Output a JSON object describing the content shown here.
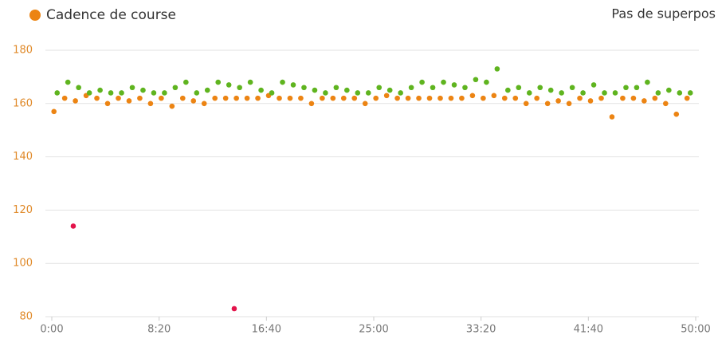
{
  "chart_data": {
    "type": "scatter",
    "legend_label": "Pas de superpos",
    "xlim": [
      0,
      3000
    ],
    "xticks": [
      {
        "value": 0,
        "label": "0:00"
      },
      {
        "value": 500,
        "label": "8:20"
      },
      {
        "value": 1000,
        "label": "16:40"
      },
      {
        "value": 1500,
        "label": "25:00"
      },
      {
        "value": 2000,
        "label": "33:20"
      },
      {
        "value": 2500,
        "label": "41:40"
      },
      {
        "value": 3000,
        "label": "50:00"
      }
    ],
    "ylim": [
      80,
      180
    ],
    "yticks": [
      80,
      100,
      120,
      140,
      160,
      180
    ],
    "ytick_color": "#e08a2a",
    "grid": true,
    "series": [
      {
        "name": "Cadence de course",
        "color": "#ec8413",
        "x": [
          10,
          60,
          110,
          160,
          210,
          260,
          310,
          360,
          410,
          460,
          510,
          560,
          610,
          660,
          710,
          760,
          810,
          860,
          910,
          960,
          1010,
          1060,
          1110,
          1160,
          1210,
          1260,
          1310,
          1360,
          1410,
          1460,
          1510,
          1560,
          1610,
          1660,
          1710,
          1760,
          1810,
          1860,
          1910,
          1960,
          2010,
          2060,
          2110,
          2160,
          2210,
          2260,
          2310,
          2360,
          2410,
          2460,
          2510,
          2560,
          2610,
          2660,
          2710,
          2760,
          2810,
          2860,
          2910,
          2960
        ],
        "values": [
          157,
          162,
          161,
          163,
          162,
          160,
          162,
          161,
          162,
          160,
          162,
          159,
          162,
          161,
          160,
          162,
          162,
          162,
          162,
          162,
          163,
          162,
          162,
          162,
          160,
          162,
          162,
          162,
          162,
          160,
          162,
          163,
          162,
          162,
          162,
          162,
          162,
          162,
          162,
          163,
          162,
          163,
          162,
          162,
          160,
          162,
          160,
          161,
          160,
          162,
          161,
          162,
          155,
          162,
          162,
          161,
          162,
          160,
          156,
          162
        ]
      },
      {
        "color": "#5fb41f",
        "x": [
          25,
          75,
          125,
          175,
          225,
          275,
          325,
          375,
          425,
          475,
          525,
          575,
          625,
          675,
          725,
          775,
          825,
          875,
          925,
          975,
          1025,
          1075,
          1125,
          1175,
          1225,
          1275,
          1325,
          1375,
          1425,
          1475,
          1525,
          1575,
          1625,
          1675,
          1725,
          1775,
          1825,
          1875,
          1925,
          1975,
          2025,
          2075,
          2125,
          2175,
          2225,
          2275,
          2325,
          2375,
          2425,
          2475,
          2525,
          2575,
          2625,
          2675,
          2725,
          2775,
          2825,
          2875,
          2925,
          2975
        ],
        "values": [
          164,
          168,
          166,
          164,
          165,
          164,
          164,
          166,
          165,
          164,
          164,
          166,
          168,
          164,
          165,
          168,
          167,
          166,
          168,
          165,
          164,
          168,
          167,
          166,
          165,
          164,
          166,
          165,
          164,
          164,
          166,
          165,
          164,
          166,
          168,
          166,
          168,
          167,
          166,
          169,
          168,
          173,
          165,
          166,
          164,
          166,
          165,
          164,
          166,
          164,
          167,
          164,
          164,
          166,
          166,
          168,
          164,
          165,
          164,
          164
        ]
      },
      {
        "color": "#e3144b",
        "x": [
          100,
          850
        ],
        "values": [
          114,
          83
        ]
      }
    ]
  }
}
